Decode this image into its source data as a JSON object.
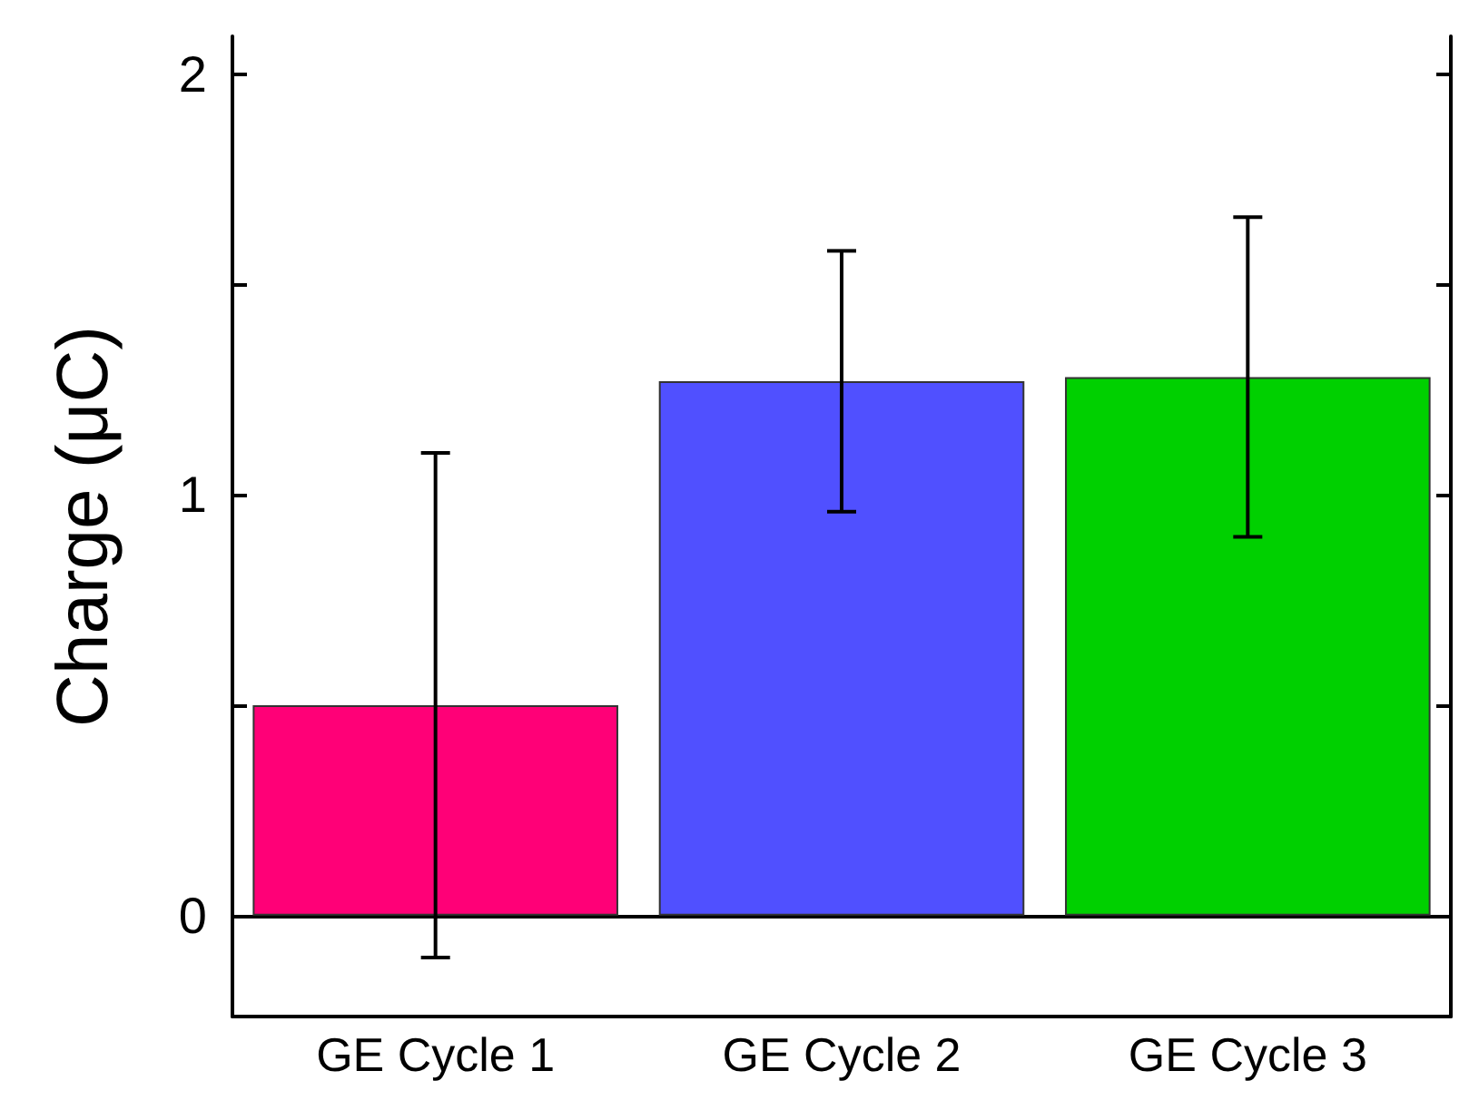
{
  "chart_data": {
    "type": "bar",
    "ylabel": "Charge (μC)",
    "categories": [
      "GE Cycle 1",
      "GE Cycle 2",
      "GE Cycle 3"
    ],
    "values": [
      0.5,
      1.27,
      1.28
    ],
    "colors": [
      "#ff0077",
      "#5050ff",
      "#00d000"
    ],
    "errors": [
      0.6,
      0.31,
      0.38
    ],
    "ylim": [
      -0.24,
      2.09
    ],
    "yticks": [
      0,
      {
        "value": 0.5,
        "label": null
      },
      1,
      {
        "value": 1.5,
        "label": null
      },
      2
    ]
  }
}
